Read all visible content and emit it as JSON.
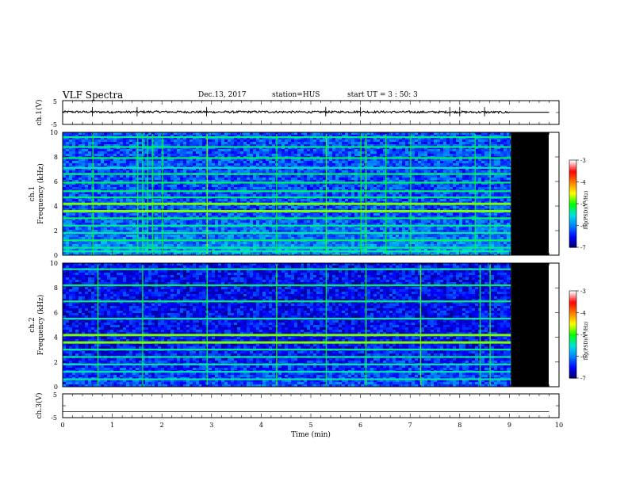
{
  "header": {
    "title": "VLF Spectra",
    "date": "Dec.13, 2017",
    "station": "station=HUS",
    "start_ut": "start UT =  3 : 50: 3"
  },
  "chart_data": [
    {
      "type": "line",
      "panel": "ch1-waveform",
      "ylabel": "ch.1(V)",
      "ylim": [
        -5,
        5
      ],
      "yticks": [
        "5",
        "-5"
      ],
      "xlim": [
        0,
        10
      ],
      "x": [
        0,
        1,
        2,
        3,
        4,
        5,
        6,
        7,
        8,
        9,
        9.8
      ],
      "y": [
        0.3,
        0.2,
        0.3,
        0.2,
        0.3,
        0.2,
        0.3,
        0.2,
        0.2,
        0.1,
        0.1
      ],
      "grid": false
    },
    {
      "type": "heatmap",
      "panel": "ch1-spectrogram",
      "ylabel": "ch.1 Frequency (kHz)",
      "ylim": [
        0,
        10
      ],
      "yticks": [
        "0",
        "2",
        "4",
        "6",
        "8",
        "10"
      ],
      "xlim": [
        0,
        10
      ],
      "data_end_min": 9.03,
      "line_frequencies_khz": [
        0.3,
        0.6,
        1.2,
        1.8,
        2.4,
        3.0,
        3.6,
        4.2,
        4.7,
        5.2,
        5.9,
        6.6,
        7.1,
        7.9,
        8.8,
        9.6
      ],
      "bright_line_frequencies_khz": [
        3.6,
        4.2
      ],
      "burst_times_min": [
        0.6,
        1.5,
        1.6,
        1.7,
        1.8,
        2.0,
        2.9,
        4.3,
        5.3,
        6.0,
        6.1,
        6.5,
        7.0,
        8.3,
        8.6
      ],
      "colorbar": {
        "label": "log(PSD)(V²/Hz)",
        "ticks": [
          "-3",
          "-4",
          "-5",
          "-6",
          "-7"
        ],
        "range": [
          -7,
          -3
        ]
      }
    },
    {
      "type": "heatmap",
      "panel": "ch2-spectrogram",
      "ylabel": "ch.2 Frequency (kHz)",
      "ylim": [
        0,
        10
      ],
      "yticks": [
        "0",
        "2",
        "4",
        "6",
        "8",
        "10"
      ],
      "xlim": [
        0,
        10
      ],
      "data_end_min": 9.03,
      "line_frequencies_khz": [
        0.6,
        1.2,
        1.8,
        2.4,
        3.0,
        3.6,
        4.2,
        5.5,
        6.9,
        8.2,
        9.5
      ],
      "bright_line_frequencies_khz": [
        3.6,
        4.2
      ],
      "burst_times_min": [
        0.7,
        1.6,
        2.9,
        4.3,
        5.3,
        6.1,
        7.2,
        8.4,
        8.6
      ],
      "colorbar": {
        "label": "log(PSD)(V²/Hz)",
        "ticks": [
          "-3",
          "-4",
          "-5",
          "-6",
          "-7"
        ],
        "range": [
          -7,
          -3
        ]
      }
    },
    {
      "type": "line",
      "panel": "ch3-waveform",
      "ylabel": "ch.3(V)",
      "ylim": [
        -5,
        5
      ],
      "yticks": [
        "5",
        "-5"
      ],
      "xlim": [
        0,
        10
      ],
      "x": [
        0,
        9.8
      ],
      "y": [
        -2.5,
        -2.5
      ],
      "xlabel": "Time (min)",
      "xticks": [
        "0",
        "1",
        "2",
        "3",
        "4",
        "5",
        "6",
        "7",
        "8",
        "9",
        "10"
      ],
      "grid": false
    }
  ],
  "colors": {
    "frame": "#000000",
    "no_data": "#000000",
    "colormap": [
      "#00005a",
      "#0000ff",
      "#0080ff",
      "#00e0e0",
      "#00ff00",
      "#ffff00",
      "#ff8000",
      "#ff0000",
      "#ffffff"
    ]
  }
}
